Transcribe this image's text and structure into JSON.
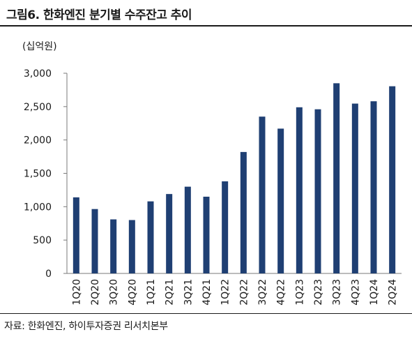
{
  "header": {
    "title": "그림6.  한화엔진 분기별 수주잔고 추이"
  },
  "footer": {
    "source": "자료: 한화엔진, 하이투자증권 리서치본부"
  },
  "chart_data": {
    "type": "bar",
    "unit_label": "(십억원)",
    "categories": [
      "1Q20",
      "2Q20",
      "3Q20",
      "4Q20",
      "1Q21",
      "2Q21",
      "3Q21",
      "4Q21",
      "1Q22",
      "2Q22",
      "3Q22",
      "4Q22",
      "1Q23",
      "2Q23",
      "3Q23",
      "4Q23",
      "1Q24",
      "2Q24"
    ],
    "values": [
      1140,
      965,
      810,
      800,
      1080,
      1190,
      1300,
      1150,
      1380,
      1820,
      2350,
      2170,
      2490,
      2460,
      2850,
      2545,
      2580,
      2805
    ],
    "ylim": [
      0,
      3000
    ],
    "yticks": [
      0,
      500,
      1000,
      1500,
      2000,
      2500,
      3000
    ],
    "ytick_labels": [
      "0",
      "500",
      "1,000",
      "1,500",
      "2,000",
      "2,500",
      "3,000"
    ],
    "bar_color": "#1f3f73",
    "grid": false,
    "legend": "none"
  }
}
